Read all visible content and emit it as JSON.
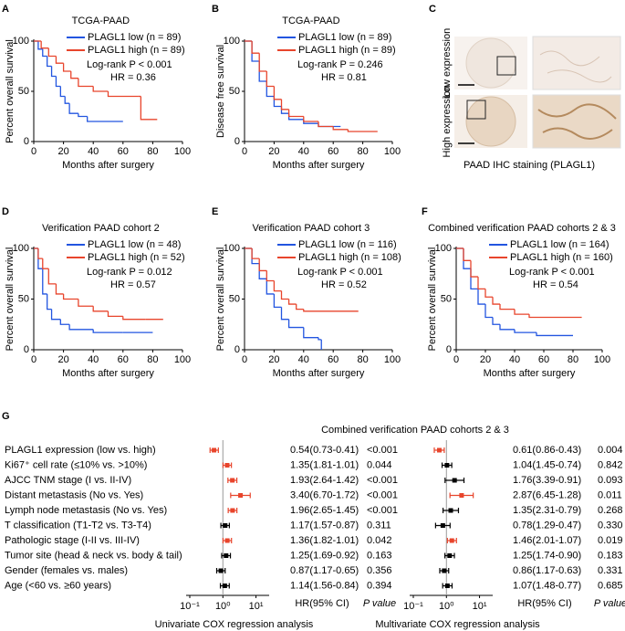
{
  "chart_data": [
    {
      "type": "step",
      "panel": "A",
      "title": "TCGA-PAAD",
      "xlabel": "Months after surgery",
      "ylabel": "Percent overall survival",
      "xlim": [
        0,
        100
      ],
      "ylim": [
        0,
        100
      ],
      "xticks": [
        0,
        20,
        40,
        60,
        80,
        100
      ],
      "yticks": [
        0,
        50,
        100
      ],
      "series": [
        {
          "name": "PLAGL1 low (n = 89)",
          "color": "#2255e0",
          "x": [
            0,
            3,
            6,
            9,
            12,
            15,
            18,
            21,
            24,
            30,
            36,
            60
          ],
          "values": [
            100,
            92,
            85,
            75,
            65,
            55,
            45,
            38,
            28,
            25,
            20,
            20
          ]
        },
        {
          "name": "PLAGL1 high (n = 89)",
          "color": "#e8452c",
          "x": [
            0,
            5,
            10,
            15,
            20,
            25,
            30,
            40,
            50,
            70,
            72,
            83
          ],
          "values": [
            100,
            93,
            85,
            78,
            70,
            63,
            55,
            50,
            45,
            45,
            22,
            22
          ]
        }
      ],
      "annotations": [
        "Log-rank P < 0.001",
        "HR = 0.36"
      ]
    },
    {
      "type": "step",
      "panel": "B",
      "title": "TCGA-PAAD",
      "xlabel": "Months after surgery",
      "ylabel": "Disease free survival",
      "xlim": [
        0,
        100
      ],
      "ylim": [
        0,
        100
      ],
      "xticks": [
        0,
        20,
        40,
        60,
        80,
        100
      ],
      "yticks": [
        0,
        50,
        100
      ],
      "series": [
        {
          "name": "PLAGL1 low (n = 89)",
          "color": "#2255e0",
          "x": [
            0,
            5,
            10,
            15,
            20,
            25,
            30,
            40,
            50,
            65
          ],
          "values": [
            100,
            80,
            60,
            45,
            35,
            28,
            22,
            18,
            15,
            15
          ]
        },
        {
          "name": "PLAGL1 high (n = 89)",
          "color": "#e8452c",
          "x": [
            0,
            5,
            10,
            15,
            20,
            25,
            30,
            40,
            50,
            60,
            70,
            90
          ],
          "values": [
            100,
            88,
            70,
            55,
            42,
            32,
            25,
            20,
            15,
            12,
            10,
            10
          ]
        }
      ],
      "annotations": [
        "Log-rank P = 0.246",
        "HR = 0.81"
      ]
    },
    {
      "type": "image",
      "panel": "C",
      "row_labels": [
        "Low expression",
        "High expression"
      ],
      "caption": "PAAD IHC staining (PLAGL1)"
    },
    {
      "type": "step",
      "panel": "D",
      "title": "Verification PAAD cohort 2",
      "xlabel": "Months after surgery",
      "ylabel": "Percent overall survival",
      "xlim": [
        0,
        100
      ],
      "ylim": [
        0,
        100
      ],
      "xticks": [
        0,
        20,
        40,
        60,
        80,
        100
      ],
      "yticks": [
        0,
        50,
        100
      ],
      "series": [
        {
          "name": "PLAGL1 low (n = 48)",
          "color": "#2255e0",
          "x": [
            0,
            3,
            6,
            9,
            12,
            18,
            24,
            40,
            60,
            80
          ],
          "values": [
            100,
            80,
            55,
            40,
            30,
            25,
            20,
            17,
            17,
            17
          ]
        },
        {
          "name": "PLAGL1 high (n = 52)",
          "color": "#e8452c",
          "x": [
            0,
            3,
            6,
            10,
            15,
            20,
            30,
            40,
            50,
            60,
            75,
            87
          ],
          "values": [
            100,
            90,
            80,
            65,
            55,
            50,
            43,
            38,
            33,
            30,
            30,
            30
          ]
        }
      ],
      "annotations": [
        "Log-rank P = 0.012",
        "HR = 0.57"
      ]
    },
    {
      "type": "step",
      "panel": "E",
      "title": "Verification PAAD cohort 3",
      "xlabel": "Months after surgery",
      "ylabel": "Percent overall survival",
      "xlim": [
        0,
        100
      ],
      "ylim": [
        0,
        100
      ],
      "xticks": [
        0,
        20,
        40,
        60,
        80,
        100
      ],
      "yticks": [
        0,
        50,
        100
      ],
      "series": [
        {
          "name": "PLAGL1 low (n = 116)",
          "color": "#2255e0",
          "x": [
            0,
            5,
            10,
            15,
            20,
            25,
            30,
            40,
            50,
            52
          ],
          "values": [
            100,
            85,
            70,
            55,
            42,
            30,
            22,
            12,
            10,
            0
          ]
        },
        {
          "name": "PLAGL1 high (n = 108)",
          "color": "#e8452c",
          "x": [
            0,
            5,
            10,
            15,
            20,
            25,
            30,
            35,
            40,
            77
          ],
          "values": [
            100,
            90,
            78,
            68,
            58,
            50,
            45,
            40,
            38,
            38
          ]
        }
      ],
      "annotations": [
        "Log-rank P < 0.001",
        "HR = 0.52"
      ]
    },
    {
      "type": "step",
      "panel": "F",
      "title": "Combined verification PAAD cohorts 2 & 3",
      "xlabel": "Months after surgery",
      "ylabel": "Percent overall survival",
      "xlim": [
        0,
        100
      ],
      "ylim": [
        0,
        100
      ],
      "xticks": [
        0,
        20,
        40,
        60,
        80,
        100
      ],
      "yticks": [
        0,
        50,
        100
      ],
      "series": [
        {
          "name": "PLAGL1 low (n = 164)",
          "color": "#2255e0",
          "x": [
            0,
            5,
            10,
            15,
            20,
            25,
            30,
            40,
            55,
            80
          ],
          "values": [
            100,
            80,
            60,
            45,
            32,
            25,
            20,
            17,
            14,
            14
          ]
        },
        {
          "name": "PLAGL1 high (n = 160)",
          "color": "#e8452c",
          "x": [
            0,
            5,
            10,
            15,
            20,
            25,
            30,
            40,
            50,
            86
          ],
          "values": [
            100,
            88,
            72,
            60,
            52,
            45,
            40,
            35,
            32,
            32
          ]
        }
      ],
      "annotations": [
        "Log-rank P < 0.001",
        "HR = 0.54"
      ]
    },
    {
      "type": "forest",
      "panel": "G",
      "title": "Combined verification PAAD cohorts 2 & 3",
      "xlabel": "Univariate COX regression analysis",
      "categories": [
        "PLAGL1 expression (low vs. high)",
        "Ki67⁺ cell rate (≤10% vs. >10%)",
        "AJCC TNM stage (I vs. II-IV)",
        "Distant metastasis (No vs. Yes)",
        "Lymph node metastasis (No vs. Yes)",
        "T classification (T1-T2 vs. T3-T4)",
        "Pathologic stage (I-II vs. III-IV)",
        "Tumor site (head & neck vs. body & tail)",
        "Gender (females vs. males)",
        "Age (<60 vs. ≥60 years)"
      ],
      "values": [
        0.54,
        1.35,
        1.93,
        3.4,
        1.96,
        1.17,
        1.36,
        1.25,
        0.87,
        1.14
      ],
      "ci_high": [
        0.73,
        1.81,
        2.64,
        6.7,
        2.65,
        1.57,
        1.82,
        1.69,
        1.17,
        1.56
      ],
      "ci_low": [
        0.41,
        1.01,
        1.42,
        1.72,
        1.45,
        0.87,
        1.01,
        0.92,
        0.65,
        0.84
      ],
      "value_labels": [
        "0.54(0.73-0.41)",
        "1.35(1.81-1.01)",
        "1.93(2.64-1.42)",
        "3.40(6.70-1.72)",
        "1.96(2.65-1.45)",
        "1.17(1.57-0.87)",
        "1.36(1.82-1.01)",
        "1.25(1.69-0.92)",
        "0.87(1.17-0.65)",
        "1.14(1.56-0.84)"
      ],
      "p_values": [
        "<0.001",
        "0.044",
        "<0.001",
        "<0.001",
        "<0.001",
        "0.311",
        "0.042",
        "0.163",
        "0.356",
        "0.394"
      ],
      "colors": [
        "#e8452c",
        "#e8452c",
        "#e8452c",
        "#e8452c",
        "#e8452c",
        "#000000",
        "#e8452c",
        "#000000",
        "#000000",
        "#000000"
      ],
      "hr_header": "HR(95% CI)",
      "p_header": "P value",
      "log_scale": true,
      "reference": 1,
      "xlim": [
        0.1,
        25
      ],
      "xticks": [
        {
          "value": 0.1,
          "label": "10⁻¹"
        },
        {
          "value": 1,
          "label": "10⁰"
        },
        {
          "value": 10,
          "label": "10¹"
        }
      ]
    },
    {
      "type": "forest",
      "xlabel": "Multivariate COX regression analysis",
      "values": [
        0.61,
        1.04,
        1.76,
        2.87,
        1.35,
        0.78,
        1.46,
        1.25,
        0.86,
        1.07
      ],
      "ci_high": [
        0.86,
        1.45,
        3.39,
        6.45,
        2.31,
        1.29,
        2.01,
        1.74,
        1.17,
        1.48
      ],
      "ci_low": [
        0.43,
        0.74,
        0.91,
        1.28,
        0.79,
        0.47,
        1.07,
        0.9,
        0.63,
        0.77
      ],
      "value_labels": [
        "0.61(0.86-0.43)",
        "1.04(1.45-0.74)",
        "1.76(3.39-0.91)",
        "2.87(6.45-1.28)",
        "1.35(2.31-0.79)",
        "0.78(1.29-0.47)",
        "1.46(2.01-1.07)",
        "1.25(1.74-0.90)",
        "0.86(1.17-0.63)",
        "1.07(1.48-0.77)"
      ],
      "p_values": [
        "0.004",
        "0.842",
        "0.093",
        "0.011",
        "0.268",
        "0.330",
        "0.019",
        "0.183",
        "0.331",
        "0.685"
      ],
      "colors": [
        "#e8452c",
        "#000000",
        "#000000",
        "#e8452c",
        "#000000",
        "#000000",
        "#e8452c",
        "#000000",
        "#000000",
        "#000000"
      ],
      "hr_header": "HR(95% CI)",
      "p_header": "P value",
      "log_scale": true,
      "reference": 1,
      "xlim": [
        0.1,
        25
      ],
      "xticks": [
        {
          "value": 0.1,
          "label": "10⁻¹"
        },
        {
          "value": 1,
          "label": "10⁰"
        },
        {
          "value": 10,
          "label": "10¹"
        }
      ]
    }
  ]
}
